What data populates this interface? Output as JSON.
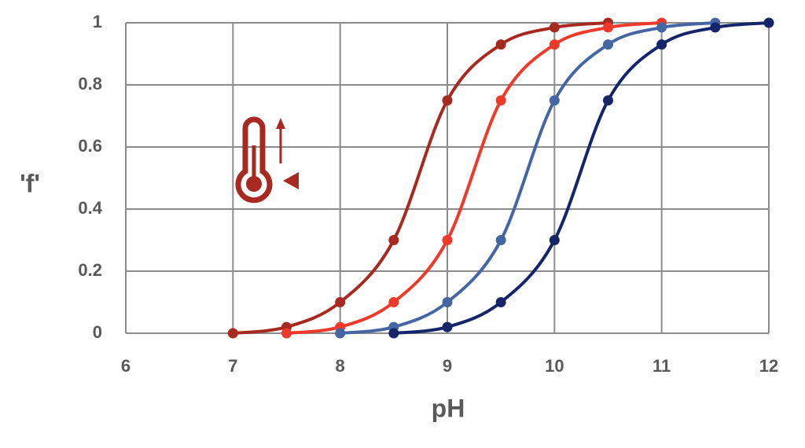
{
  "chart_data": {
    "type": "line",
    "x_label": "pH",
    "y_label": "'f'",
    "xlim": [
      6,
      12
    ],
    "ylim": [
      0,
      1
    ],
    "xticks": [
      6,
      7,
      8,
      9,
      10,
      11,
      12
    ],
    "yticks": [
      0,
      0.2,
      0.4,
      0.6,
      0.8,
      1
    ],
    "grid": true,
    "series": [
      {
        "color": "#a7291f",
        "x": [
          7,
          7.5,
          8,
          8.5,
          9,
          9.5,
          10,
          10.5
        ],
        "values": [
          0,
          0.02,
          0.1,
          0.3,
          0.75,
          0.93,
          0.985,
          1
        ]
      },
      {
        "color": "#ef3a2b",
        "x": [
          7.5,
          8,
          8.5,
          9,
          9.5,
          10,
          10.5,
          11
        ],
        "values": [
          0,
          0.02,
          0.1,
          0.3,
          0.75,
          0.93,
          0.985,
          1
        ]
      },
      {
        "color": "#4565a3",
        "x": [
          8,
          8.5,
          9,
          9.5,
          10,
          10.5,
          11,
          11.5
        ],
        "values": [
          0,
          0.02,
          0.1,
          0.3,
          0.75,
          0.93,
          0.985,
          1
        ]
      },
      {
        "color": "#14256a",
        "x": [
          8.5,
          9,
          9.5,
          10,
          10.5,
          11,
          11.5,
          12
        ],
        "values": [
          0,
          0.02,
          0.1,
          0.3,
          0.75,
          0.93,
          0.985,
          1
        ]
      }
    ]
  }
}
